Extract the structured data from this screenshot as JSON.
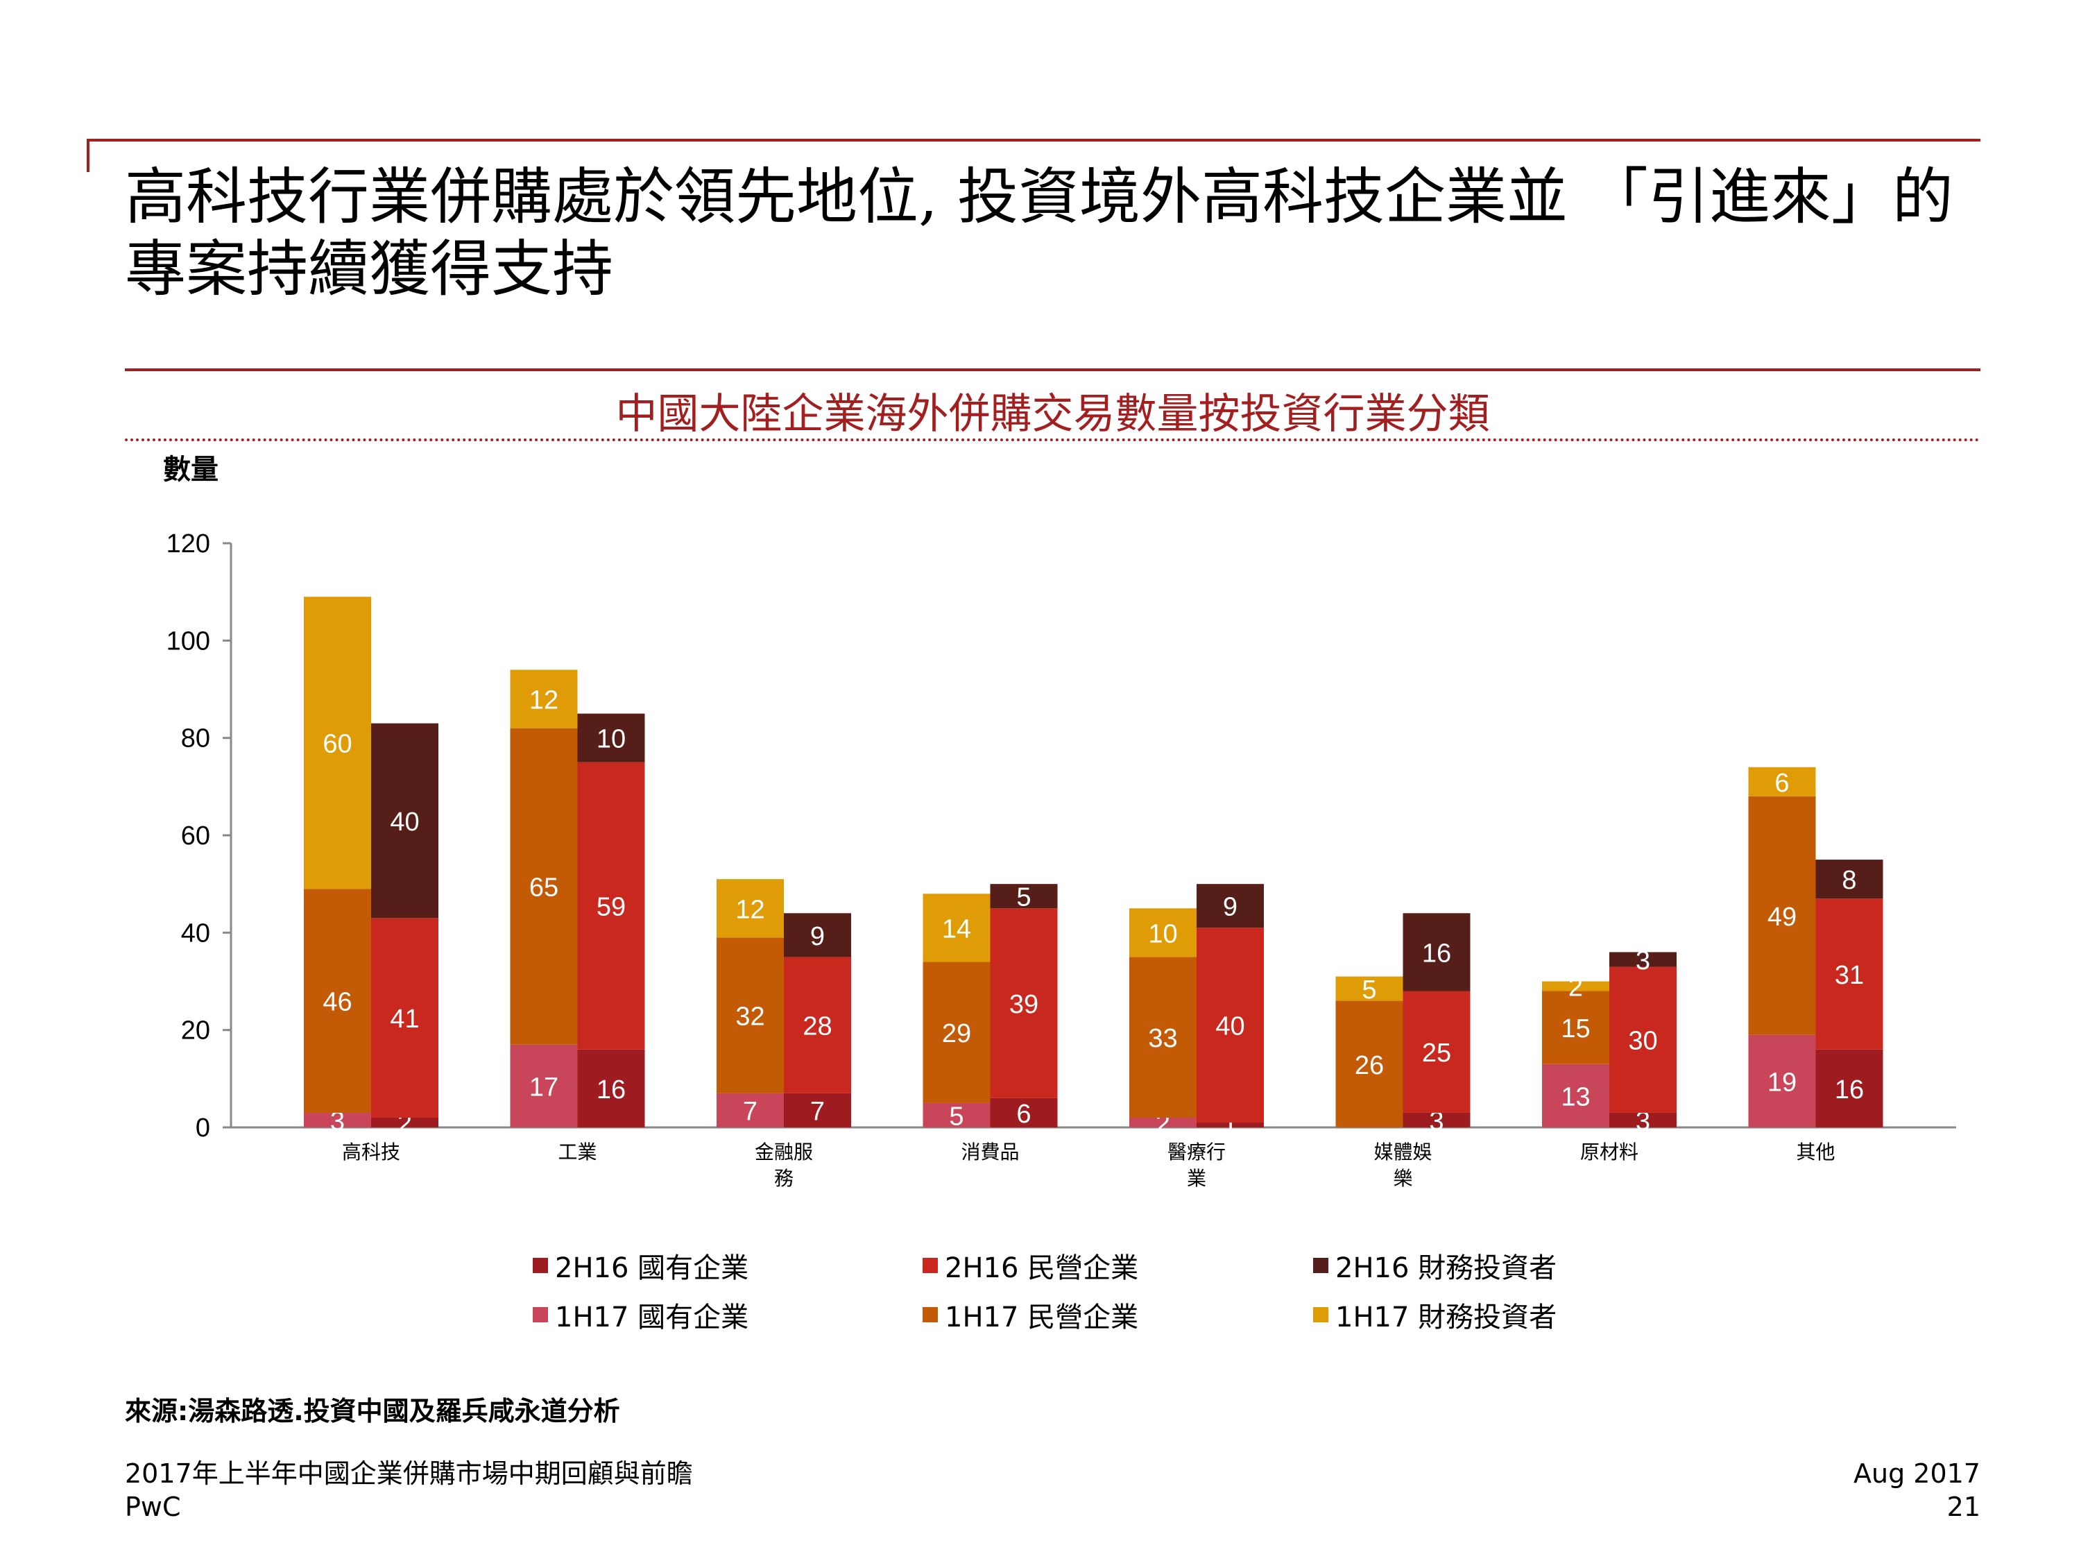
{
  "slide": {
    "title": "高科技行業併購處於領先地位, 投資境外高科技企業並 「引進來」的專案持續獲得支持"
  },
  "colors": {
    "accent": "#a31f1f",
    "soe_2h16": "#9e1b20",
    "private_2h16": "#c8281e",
    "financial_2h16": "#561e19",
    "soe_1h17": "#c9465a",
    "private_1h17": "#c35a06",
    "financial_1h17": "#e09c06"
  },
  "chart_data": {
    "type": "bar",
    "subtype": "grouped-stacked",
    "title": "中國大陸企業海外併購交易數量按投資行業分類",
    "ylabel": "數量",
    "ylim": [
      0,
      120
    ],
    "yticks": [
      "0",
      "20",
      "40",
      "60",
      "80",
      "100",
      "120"
    ],
    "categories": [
      "高科技",
      "工業",
      "金融服務",
      "消費品",
      "醫療行業",
      "媒體娛樂",
      "原材料",
      "其他"
    ],
    "category_lines": [
      [
        "高科技"
      ],
      [
        "工業"
      ],
      [
        "金融服",
        "務"
      ],
      [
        "消費品"
      ],
      [
        "醫療行",
        "業"
      ],
      [
        "媒體娛",
        "樂"
      ],
      [
        "原材料"
      ],
      [
        "其他"
      ]
    ],
    "groups": [
      {
        "period": "1H17",
        "series": [
          {
            "name": "1H17 國有企業",
            "color_key": "soe_1h17",
            "values": [
              3,
              17,
              7,
              5,
              2,
              0,
              13,
              19
            ]
          },
          {
            "name": "1H17 民營企業",
            "color_key": "private_1h17",
            "values": [
              46,
              65,
              32,
              29,
              33,
              26,
              15,
              49
            ]
          },
          {
            "name": "1H17 財務投資者",
            "color_key": "financial_1h17",
            "values": [
              60,
              12,
              12,
              14,
              10,
              5,
              2,
              6
            ]
          }
        ]
      },
      {
        "period": "2H16",
        "series": [
          {
            "name": "2H16 國有企業",
            "color_key": "soe_2h16",
            "values": [
              2,
              16,
              7,
              6,
              1,
              3,
              3,
              16
            ]
          },
          {
            "name": "2H16 民營企業",
            "color_key": "private_2h16",
            "values": [
              41,
              59,
              28,
              39,
              40,
              25,
              30,
              31
            ]
          },
          {
            "name": "2H16 財務投資者",
            "color_key": "financial_2h16",
            "values": [
              40,
              10,
              9,
              5,
              9,
              16,
              3,
              8
            ]
          }
        ]
      }
    ],
    "legend": [
      {
        "label": "2H16 國有企業",
        "color_key": "soe_2h16"
      },
      {
        "label": "2H16 民營企業",
        "color_key": "private_2h16"
      },
      {
        "label": "2H16 財務投資者",
        "color_key": "financial_2h16"
      },
      {
        "label": "1H17 國有企業",
        "color_key": "soe_1h17"
      },
      {
        "label": "1H17 民營企業",
        "color_key": "private_1h17"
      },
      {
        "label": "1H17 財務投資者",
        "color_key": "financial_1h17"
      }
    ]
  },
  "source": "來源:湯森路透.投資中國及羅兵咸永道分析",
  "footer": {
    "report_title": "2017年上半年中國企業併購市場中期回顧與前瞻",
    "company": "PwC",
    "date": "Aug 2017",
    "page": "21"
  }
}
